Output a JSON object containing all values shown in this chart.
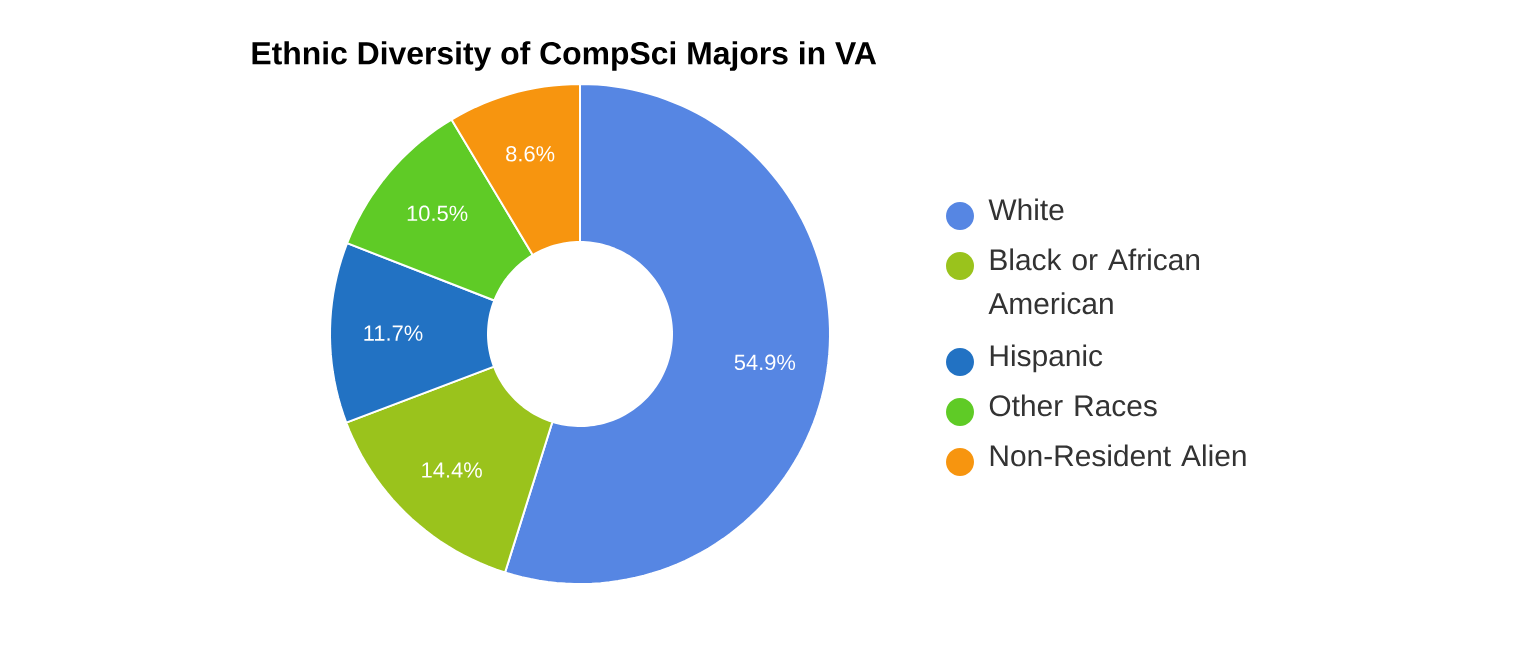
{
  "chart_data": {
    "type": "donut",
    "title": "Ethnic Diversity of CompSci Majors in VA",
    "categories": [
      "White",
      "Black or African American",
      "Hispanic",
      "Other Races",
      "Non-Resident Alien"
    ],
    "values": [
      54.9,
      14.4,
      11.7,
      10.5,
      8.6
    ],
    "colors": [
      "#5686e3",
      "#9ac31c",
      "#2272c3",
      "#5fcb26",
      "#f7950f"
    ],
    "value_labels": [
      "54.9%",
      "14.4%",
      "11.7%",
      "10.5%",
      "8.6%"
    ],
    "legend": "right"
  }
}
